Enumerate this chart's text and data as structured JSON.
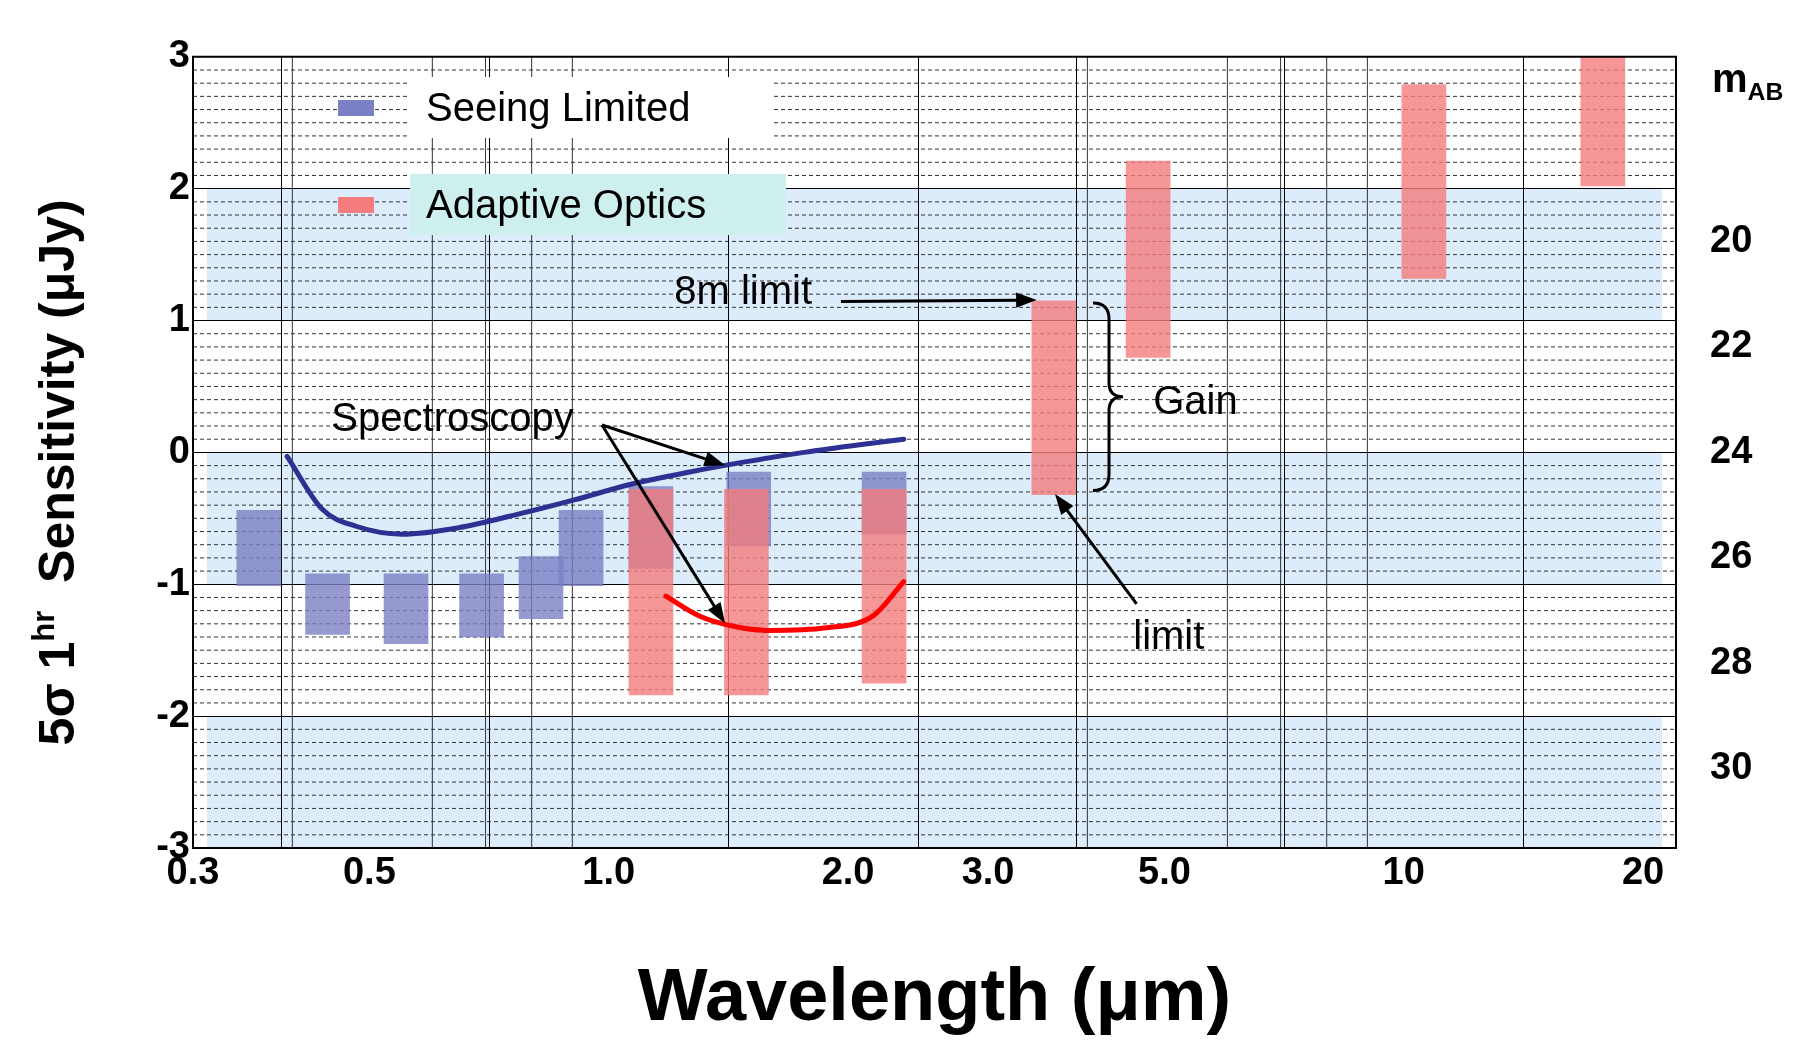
{
  "chart_data": {
    "type": "bar",
    "ylabel": "5σ 1$^{hr}$  Sensitivity (μJy)",
    "xlabel": "Wavelength (μm)",
    "y2label": "m$_{AB}$",
    "log": "x",
    "grid": true,
    "legend": "top left",
    "xlim": [
      0.3,
      22
    ],
    "xticks": [
      0.3,
      0.5,
      {
        "value": 1,
        "label": "1.0"
      },
      {
        "value": 2,
        "label": "2.0"
      },
      {
        "value": 3,
        "label": "3.0"
      },
      {
        "value": 5,
        "label": "5.0"
      },
      10,
      20
    ],
    "ylim": [
      -3,
      3
    ],
    "yticks": [
      -3,
      -2,
      -1,
      0,
      1,
      2,
      3
    ],
    "y2lim": [
      31.5,
      16.5
    ],
    "y2ticks": [
      20,
      22,
      24,
      26,
      28,
      30
    ],
    "bands": [
      {
        "axis": "y",
        "from": 1,
        "to": 2,
        "color": "#dcecfb"
      },
      {
        "axis": "y",
        "from": -1,
        "to": 0,
        "color": "#dcecfb"
      },
      {
        "axis": "y",
        "from": -3,
        "to": -2,
        "color": "#dcecfb"
      }
    ],
    "series": [
      {
        "name": "Seeing Limited",
        "color": "#7b7fc4",
        "x": [
          0.363,
          0.443,
          0.556,
          0.692,
          0.822,
          0.923,
          1.13,
          1.5,
          2.22
        ],
        "base": [
          -1.01,
          -1.38,
          -1.45,
          -1.4,
          -1.26,
          -1.01,
          -0.88,
          -0.71,
          -0.62
        ],
        "values": [
          0.57,
          0.46,
          0.53,
          0.48,
          0.47,
          0.57,
          0.62,
          0.56,
          0.47
        ]
      },
      {
        "name": "Adaptive Optics",
        "color": "#f47c7c",
        "x": [
          1.13,
          1.49,
          2.22,
          3.63,
          4.77,
          10.6,
          17.8
        ],
        "base": [
          -1.84,
          -1.84,
          -1.75,
          -0.32,
          0.72,
          1.32,
          2.02
        ],
        "values": [
          1.56,
          1.56,
          1.47,
          1.47,
          1.49,
          1.47,
          0.98
        ]
      },
      {
        "type": "line",
        "color": "#2e3192",
        "x": [
          0.394,
          0.436,
          0.481,
          0.55,
          0.649,
          0.767,
          0.905,
          1.07,
          1.26,
          1.49,
          1.76,
          2.08,
          2.35
        ],
        "values": [
          -0.03,
          -0.43,
          -0.56,
          -0.62,
          -0.57,
          -0.47,
          -0.36,
          -0.24,
          -0.15,
          -0.07,
          0,
          0.06,
          0.1
        ]
      },
      {
        "type": "line",
        "color": "#ff0000",
        "x": [
          1.18,
          1.3,
          1.44,
          1.59,
          1.88,
          2.15,
          2.35
        ],
        "values": [
          -1.09,
          -1.24,
          -1.32,
          -1.35,
          -1.33,
          -1.24,
          -0.98
        ]
      }
    ],
    "annotations": [
      "Spectroscopy",
      "8m limit",
      "Gain",
      "limit"
    ]
  }
}
